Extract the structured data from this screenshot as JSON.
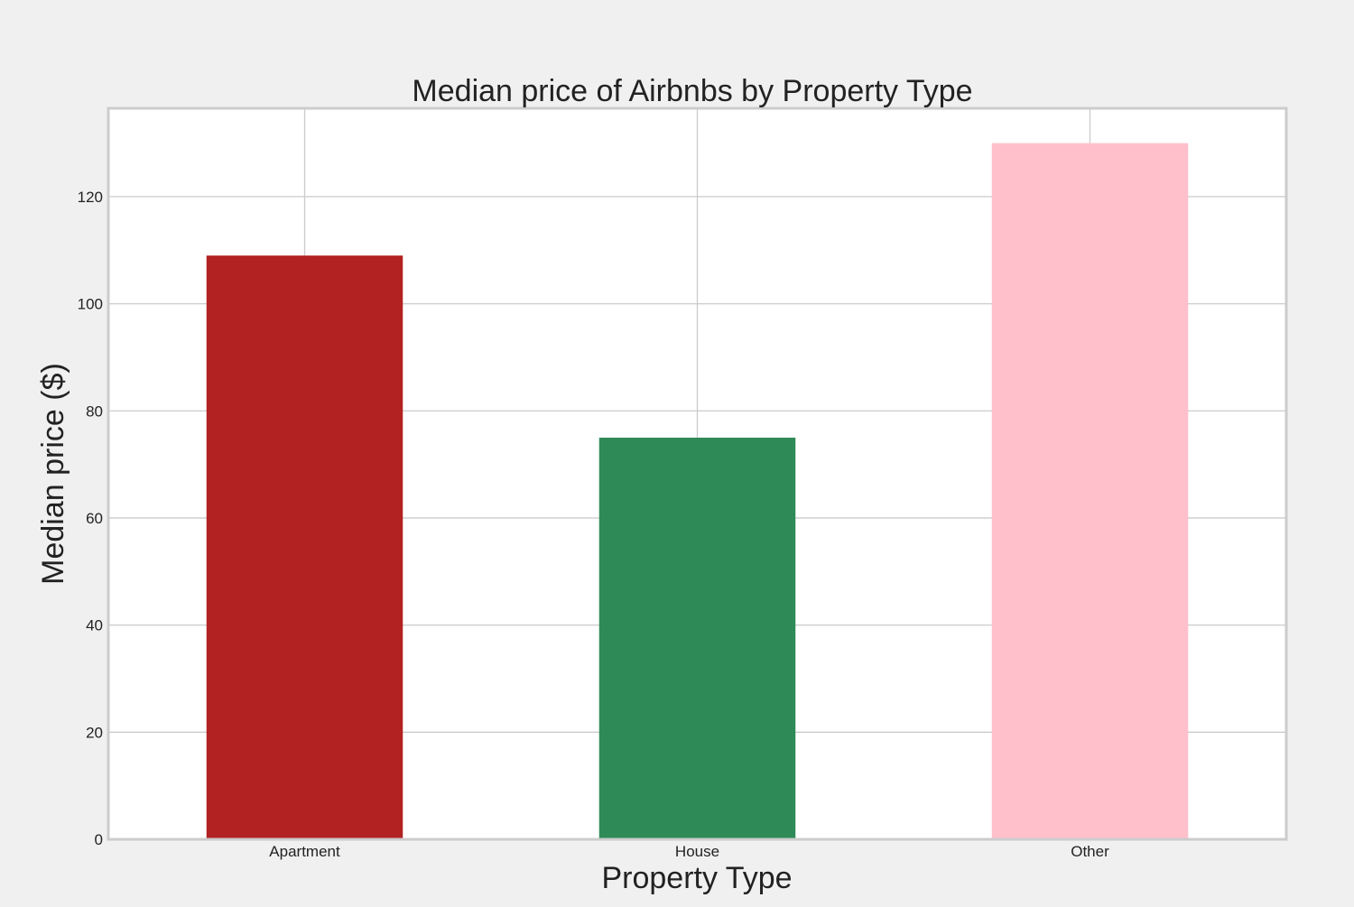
{
  "chart_data": {
    "type": "bar",
    "title": "Median price of Airbnbs by Property Type",
    "xlabel": "Property Type",
    "ylabel": "Median price ($)",
    "categories": [
      "Apartment",
      "House",
      "Other"
    ],
    "values": [
      109,
      75,
      130
    ],
    "colors": [
      "#b22222",
      "#2e8b57",
      "#ffc0cb"
    ],
    "ylim": [
      0,
      136.5
    ],
    "yticks": [
      0,
      20,
      40,
      60,
      80,
      100,
      120
    ],
    "grid": true,
    "legend": "none"
  },
  "style": {
    "figure_background": "#f0f0f0",
    "plot_background": "#ffffff",
    "grid_color": "#cbcbcb",
    "spine_color": "#cccccc",
    "text_color": "#222222"
  }
}
